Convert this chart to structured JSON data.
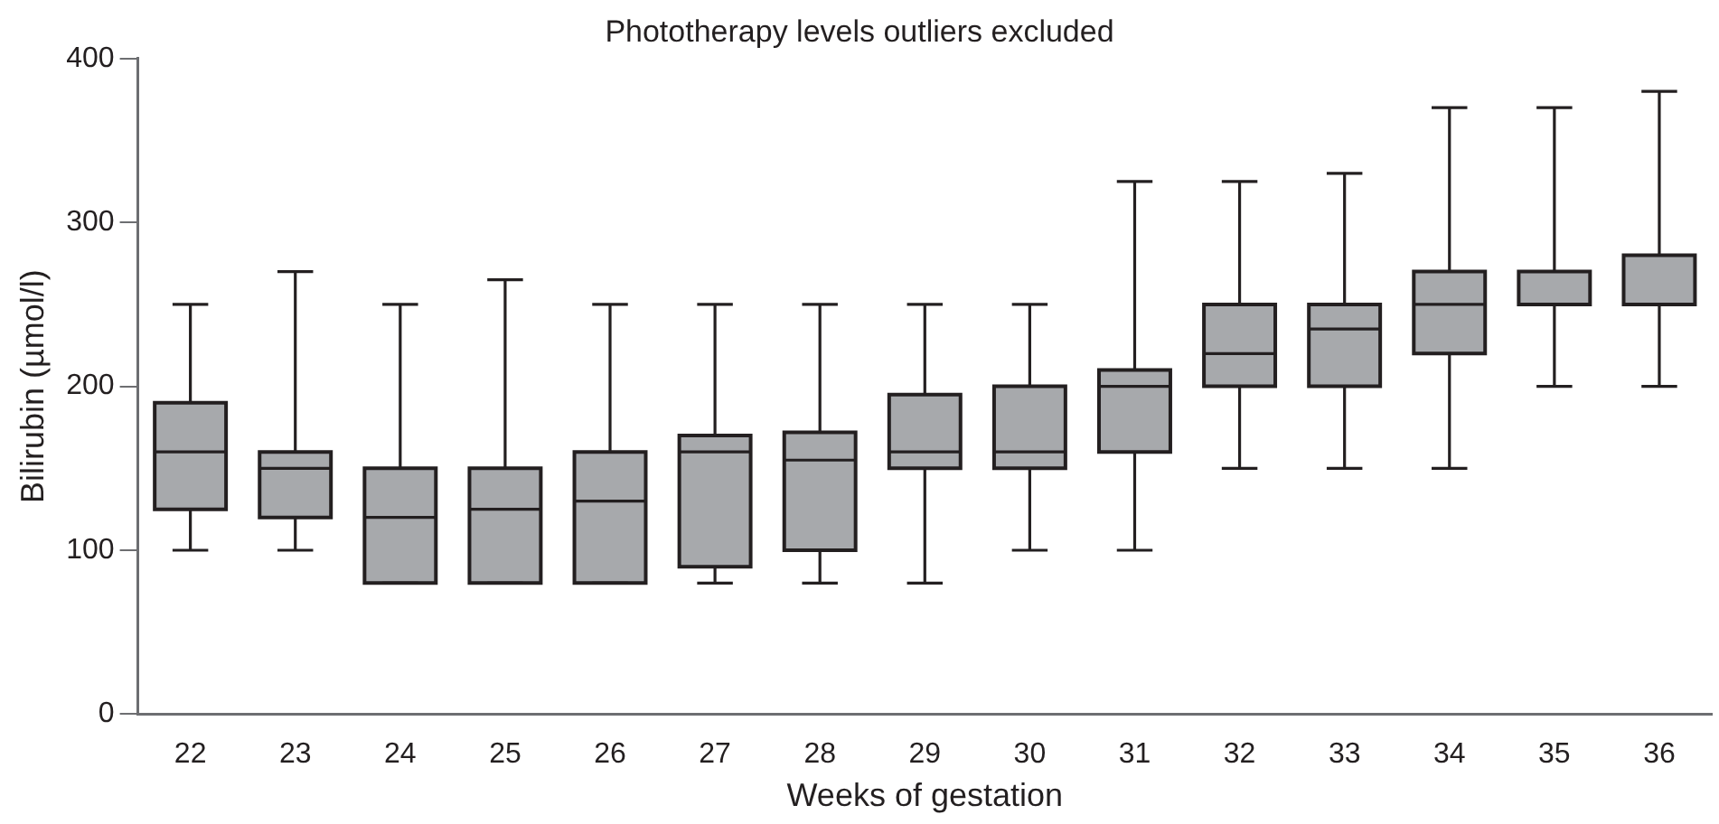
{
  "chart_data": {
    "type": "box",
    "title": "Phototherapy levels outliers excluded",
    "xlabel": "Weeks of gestation",
    "ylabel": "Bilirubin (µmol/l)",
    "categories": [
      "22",
      "23",
      "24",
      "25",
      "26",
      "27",
      "28",
      "29",
      "30",
      "31",
      "32",
      "33",
      "34",
      "35",
      "36"
    ],
    "color": "#a7a9ac",
    "boxes": [
      {
        "low": 100,
        "q1": 125,
        "median": 160,
        "q3": 190,
        "high": 250
      },
      {
        "low": 100,
        "q1": 120,
        "median": 150,
        "q3": 160,
        "high": 270
      },
      {
        "low": 80,
        "q1": 80,
        "median": 120,
        "q3": 150,
        "high": 250
      },
      {
        "low": 80,
        "q1": 80,
        "median": 125,
        "q3": 150,
        "high": 265
      },
      {
        "low": 80,
        "q1": 80,
        "median": 130,
        "q3": 160,
        "high": 250
      },
      {
        "low": 80,
        "q1": 90,
        "median": 160,
        "q3": 170,
        "high": 250
      },
      {
        "low": 80,
        "q1": 100,
        "median": 155,
        "q3": 172,
        "high": 250
      },
      {
        "low": 80,
        "q1": 150,
        "median": 160,
        "q3": 195,
        "high": 250
      },
      {
        "low": 100,
        "q1": 150,
        "median": 160,
        "q3": 200,
        "high": 250
      },
      {
        "low": 100,
        "q1": 160,
        "median": 200,
        "q3": 210,
        "high": 325
      },
      {
        "low": 150,
        "q1": 200,
        "median": 220,
        "q3": 250,
        "high": 325
      },
      {
        "low": 150,
        "q1": 200,
        "median": 235,
        "q3": 250,
        "high": 330
      },
      {
        "low": 150,
        "q1": 220,
        "median": 250,
        "q3": 270,
        "high": 370
      },
      {
        "low": 200,
        "q1": 250,
        "median": 250,
        "q3": 270,
        "high": 370
      },
      {
        "low": 200,
        "q1": 250,
        "median": 250,
        "q3": 280,
        "high": 380
      }
    ],
    "ylim": [
      0,
      400
    ],
    "yticks": [
      0,
      100,
      200,
      300,
      400
    ],
    "grid": false,
    "legend": false
  }
}
